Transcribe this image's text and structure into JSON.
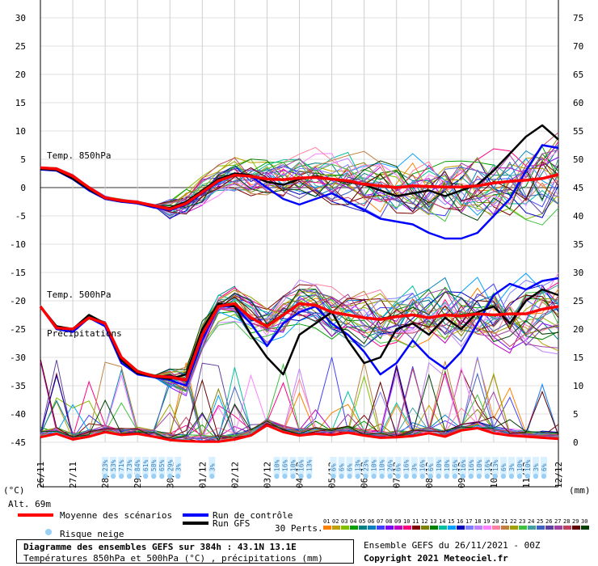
{
  "chart_data": {
    "type": "line",
    "title": "Diagramme des ensembles GEFS sur 384h : 43.1N 13.1E",
    "subtitle": "Températures 850hPa et 500hPa (°C) , précipitations (mm)",
    "run_info": "Ensemble GEFS du 26/11/2021 - 00Z",
    "copyright": "Copyright 2021 Meteociel.fr",
    "left_axis": {
      "label": "(°C)",
      "ylim": [
        -45,
        30
      ],
      "ticks": [
        30,
        25,
        20,
        15,
        10,
        5,
        0,
        -5,
        -10,
        -15,
        -20,
        -25,
        -30,
        -35,
        -40,
        -45
      ]
    },
    "right_axis": {
      "label": "(mm)",
      "ylim": [
        0,
        75
      ],
      "ticks": [
        75,
        70,
        65,
        60,
        55,
        50,
        45,
        40,
        35,
        30,
        25,
        20,
        15,
        10,
        5,
        0
      ]
    },
    "x_tick_labels": [
      "26/11",
      "27/11",
      "28/11",
      "29/11",
      "30/11",
      "01/12",
      "02/12",
      "03/12",
      "04/12",
      "05/12",
      "06/12",
      "07/12",
      "08/12",
      "09/12",
      "10/12",
      "11/12",
      "12/12"
    ],
    "altitude_label": "Alt. 69m",
    "annotations": {
      "t850": "Temp. 850hPa",
      "t500": "Temp. 500hPa",
      "precip": "Précipitations"
    },
    "legend": {
      "mean": "Moyenne des scénarios",
      "control": "Run de contrôle",
      "gfs": "Run GFS",
      "snow": "Risque neige",
      "perts": "30 Perts."
    },
    "pert_labels": [
      "01",
      "02",
      "03",
      "04",
      "05",
      "06",
      "07",
      "08",
      "09",
      "10",
      "11",
      "12",
      "13",
      "14",
      "15",
      "16",
      "17",
      "18",
      "19",
      "20",
      "21",
      "22",
      "23",
      "24",
      "25",
      "26",
      "27",
      "28",
      "29",
      "30"
    ],
    "pert_colors": [
      "#ff8000",
      "#c0a000",
      "#80c000",
      "#00a000",
      "#008080",
      "#0080c0",
      "#4040ff",
      "#8000ff",
      "#c000c0",
      "#ff0080",
      "#800000",
      "#808000",
      "#008000",
      "#00c0a0",
      "#00a0ff",
      "#0000c0",
      "#8080ff",
      "#c080ff",
      "#ff80ff",
      "#ff80a0",
      "#c08040",
      "#a0a000",
      "#40c040",
      "#40a0a0",
      "#4060c0",
      "#6040a0",
      "#a040a0",
      "#c04060",
      "#600000",
      "#004000"
    ],
    "snow_risk": [
      {
        "day": 2.0,
        "pct": "23%"
      },
      {
        "day": 2.25,
        "pct": "53%"
      },
      {
        "day": 2.5,
        "pct": "71%"
      },
      {
        "day": 2.75,
        "pct": "73%"
      },
      {
        "day": 3.0,
        "pct": "84%"
      },
      {
        "day": 3.25,
        "pct": "61%"
      },
      {
        "day": 3.5,
        "pct": "58%"
      },
      {
        "day": 3.75,
        "pct": "65%"
      },
      {
        "day": 4.0,
        "pct": "29%"
      },
      {
        "day": 4.25,
        "pct": "3%"
      },
      {
        "day": 5.3,
        "pct": "3%"
      },
      {
        "day": 7.3,
        "pct": "10%"
      },
      {
        "day": 7.55,
        "pct": "16%"
      },
      {
        "day": 7.8,
        "pct": "10%"
      },
      {
        "day": 8.05,
        "pct": "16%"
      },
      {
        "day": 8.3,
        "pct": "13%"
      },
      {
        "day": 9.05,
        "pct": "6%"
      },
      {
        "day": 9.3,
        "pct": "6%"
      },
      {
        "day": 9.55,
        "pct": "6%"
      },
      {
        "day": 9.8,
        "pct": "13%"
      },
      {
        "day": 10.05,
        "pct": "23%"
      },
      {
        "day": 10.3,
        "pct": "10%"
      },
      {
        "day": 10.55,
        "pct": "10%"
      },
      {
        "day": 10.8,
        "pct": "26%"
      },
      {
        "day": 11.05,
        "pct": "6%"
      },
      {
        "day": 11.3,
        "pct": "16%"
      },
      {
        "day": 11.55,
        "pct": "3%"
      },
      {
        "day": 11.8,
        "pct": "16%"
      },
      {
        "day": 12.05,
        "pct": "6%"
      },
      {
        "day": 12.3,
        "pct": "10%"
      },
      {
        "day": 12.55,
        "pct": "10%"
      },
      {
        "day": 12.8,
        "pct": "16%"
      },
      {
        "day": 13.05,
        "pct": "16%"
      },
      {
        "day": 13.3,
        "pct": "16%"
      },
      {
        "day": 13.55,
        "pct": "10%"
      },
      {
        "day": 13.8,
        "pct": "16%"
      },
      {
        "day": 14.05,
        "pct": "13%"
      },
      {
        "day": 14.3,
        "pct": "6%"
      },
      {
        "day": 14.55,
        "pct": "3%"
      },
      {
        "day": 14.8,
        "pct": "10%"
      },
      {
        "day": 15.05,
        "pct": "10%"
      },
      {
        "day": 15.3,
        "pct": "3%"
      },
      {
        "day": 15.55,
        "pct": "6%"
      }
    ],
    "series": [
      {
        "name": "Moyenne des scénarios",
        "axis": "left",
        "color": "#ff0000",
        "width": 3.5,
        "x": [
          0,
          0.5,
          1,
          1.5,
          2,
          2.5,
          3,
          3.5,
          4,
          4.5,
          5,
          5.5,
          6,
          6.5,
          7,
          7.5,
          8,
          8.5,
          9,
          9.5,
          10,
          10.5,
          11,
          11.5,
          12,
          12.5,
          13,
          13.5,
          14,
          14.5,
          15,
          15.5,
          16
        ],
        "y": [
          3.5,
          3.3,
          2,
          0,
          -1.8,
          -2.3,
          -2.6,
          -3.2,
          -3.8,
          -2.8,
          -0.8,
          1.2,
          2.2,
          2,
          1.5,
          1.4,
          1.7,
          1.8,
          1.5,
          1.2,
          0.6,
          0.3,
          0,
          0.3,
          0.2,
          0.1,
          0.1,
          0.3,
          0.8,
          1.1,
          1.3,
          1.6,
          2.3
        ]
      },
      {
        "name": "Moyenne des scénarios",
        "axis": "left",
        "color": "#ff0000",
        "width": 3.5,
        "x": [
          0,
          0.5,
          1,
          1.5,
          2,
          2.5,
          3,
          3.5,
          4,
          4.5,
          5,
          5.5,
          6,
          6.5,
          7,
          7.5,
          8,
          8.5,
          9,
          9.5,
          10,
          10.5,
          11,
          11.5,
          12,
          12.5,
          13,
          13.5,
          14,
          14.5,
          15,
          15.5,
          16
        ],
        "y": [
          -21,
          -24.8,
          -25,
          -23,
          -24,
          -30,
          -32.5,
          -33.3,
          -33.5,
          -34,
          -26,
          -21,
          -20.5,
          -23,
          -24.5,
          -22.5,
          -20.5,
          -20.8,
          -22,
          -22.5,
          -23,
          -23.3,
          -22.8,
          -22.5,
          -23,
          -22.5,
          -22.7,
          -22.3,
          -22.5,
          -22.3,
          -22.3,
          -21.5,
          -21
        ]
      },
      {
        "name": "Moyenne des scénarios",
        "axis": "right",
        "color": "#ff0000",
        "width": 3,
        "x": [
          0,
          0.5,
          1,
          1.5,
          2,
          2.5,
          3,
          3.5,
          4,
          4.5,
          5,
          5.5,
          6,
          6.5,
          7,
          7.5,
          8,
          8.5,
          9,
          9.5,
          10,
          10.5,
          11,
          11.5,
          12,
          12.5,
          13,
          13.5,
          14,
          14.5,
          15,
          15.5,
          16
        ],
        "y": [
          0.9,
          1.5,
          0.5,
          1,
          1.8,
          1.3,
          1.5,
          1,
          0.4,
          0.2,
          0.1,
          0.1,
          0.5,
          1.2,
          3,
          1.8,
          1.2,
          1.5,
          1.3,
          1.7,
          1.2,
          0.8,
          0.9,
          1.1,
          1.6,
          1,
          2.1,
          2.5,
          1.6,
          1.2,
          1,
          0.8,
          0.6
        ]
      },
      {
        "name": "Run de contrôle",
        "axis": "left",
        "color": "#0000ff",
        "width": 2.5,
        "x": [
          0,
          0.5,
          1,
          1.5,
          2,
          2.5,
          3,
          3.5,
          4,
          4.5,
          5,
          5.5,
          6,
          6.5,
          7,
          7.5,
          8,
          8.5,
          9,
          9.5,
          10,
          10.5,
          11,
          11.5,
          12,
          12.5,
          13,
          13.5,
          14,
          14.5,
          15,
          15.5,
          16
        ],
        "y": [
          3.2,
          3,
          1.5,
          -0.5,
          -2,
          -2.5,
          -2.8,
          -3.5,
          -4,
          -3,
          -1,
          1,
          2.5,
          2,
          0,
          -2,
          -3,
          -2,
          -1,
          -2.5,
          -4,
          -5.5,
          -6,
          -6.5,
          -8,
          -9,
          -9,
          -8,
          -5,
          -2,
          3,
          7.5,
          7
        ]
      },
      {
        "name": "Run de contrôle",
        "axis": "left",
        "color": "#0000ff",
        "width": 2.5,
        "x": [
          0,
          0.5,
          1,
          1.5,
          2,
          2.5,
          3,
          3.5,
          4,
          4.5,
          5,
          5.5,
          6,
          6.5,
          7,
          7.5,
          8,
          8.5,
          9,
          9.5,
          10,
          10.5,
          11,
          11.5,
          12,
          12.5,
          13,
          13.5,
          14,
          14.5,
          15,
          15.5,
          16
        ],
        "y": [
          -21,
          -25,
          -25.5,
          -23,
          -24.5,
          -31,
          -33,
          -33.5,
          -34,
          -35,
          -27,
          -21,
          -21,
          -24,
          -28,
          -24,
          -22,
          -21,
          -24,
          -26,
          -29,
          -33,
          -31,
          -27,
          -30,
          -32,
          -29,
          -24,
          -19,
          -17,
          -18,
          -16.5,
          -16
        ]
      },
      {
        "name": "Run GFS",
        "axis": "left",
        "color": "#000000",
        "width": 2.5,
        "x": [
          0,
          0.5,
          1,
          1.5,
          2,
          2.5,
          3,
          3.5,
          4,
          4.5,
          5,
          5.5,
          6,
          6.5,
          7,
          7.5,
          8,
          8.5,
          9,
          9.5,
          10,
          10.5,
          11,
          11.5,
          12,
          12.5,
          13,
          13.5,
          14,
          14.5,
          15,
          15.5,
          16
        ],
        "y": [
          3.3,
          3.1,
          1.6,
          -0.3,
          -1.9,
          -2.4,
          -2.7,
          -3.3,
          -3.6,
          -2.5,
          -0.5,
          1.5,
          2.5,
          2.2,
          1,
          0.5,
          1.5,
          2,
          1.5,
          1,
          0.5,
          -0.5,
          -1.5,
          -1,
          -0.5,
          -1.5,
          -0.5,
          0.5,
          3,
          6,
          9,
          11,
          8.5
        ]
      },
      {
        "name": "Run GFS",
        "axis": "left",
        "color": "#000000",
        "width": 2.5,
        "x": [
          0,
          0.5,
          1,
          1.5,
          2,
          2.5,
          3,
          3.5,
          4,
          4.5,
          5,
          5.5,
          6,
          6.5,
          7,
          7.5,
          8,
          8.5,
          9,
          9.5,
          10,
          10.5,
          11,
          11.5,
          12,
          12.5,
          13,
          13.5,
          14,
          14.5,
          15,
          15.5,
          16
        ],
        "y": [
          -21,
          -24.5,
          -25,
          -22.5,
          -24,
          -30.5,
          -32.8,
          -33.4,
          -33.8,
          -33,
          -25,
          -20.5,
          -21,
          -26,
          -30,
          -33,
          -26,
          -24,
          -22,
          -27,
          -31,
          -30,
          -25,
          -24,
          -26,
          -23,
          -25,
          -22,
          -21,
          -24,
          -20,
          -18,
          -19
        ]
      }
    ]
  }
}
